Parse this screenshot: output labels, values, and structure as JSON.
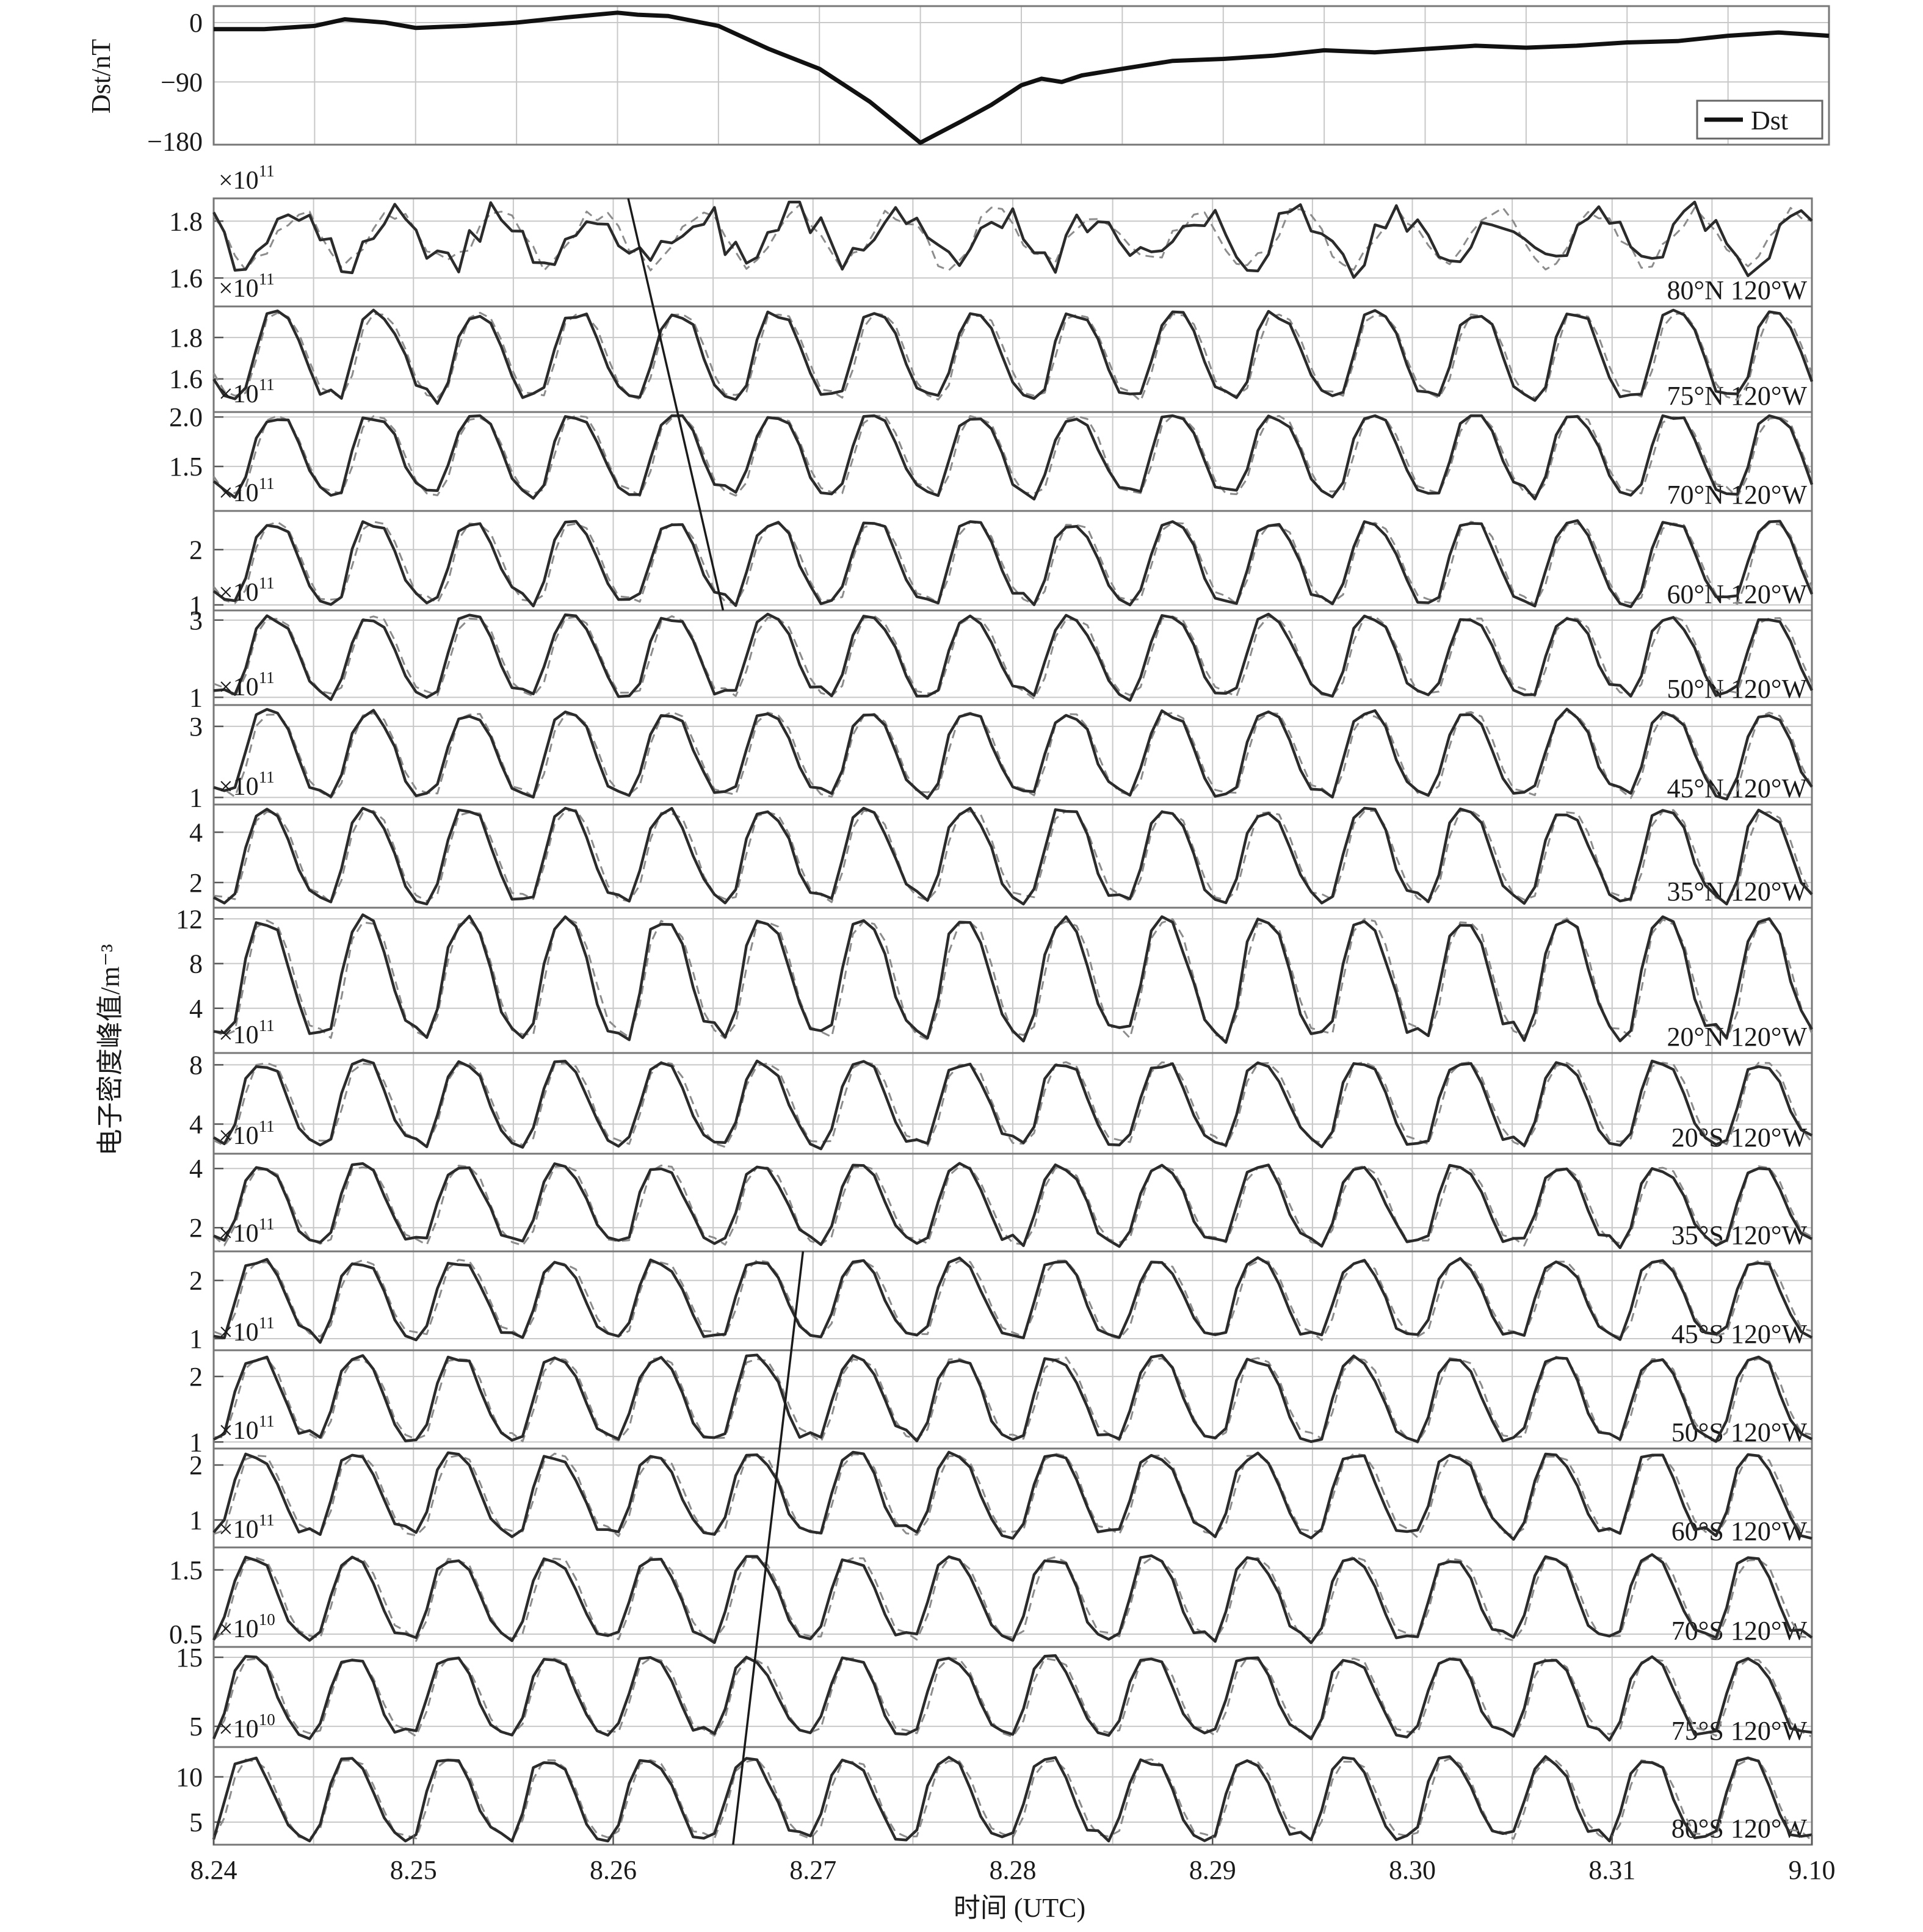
{
  "chart_data": {
    "type": "line",
    "xlabel": "时间 (UTC)",
    "ylabel": "电子密度峰值/m⁻³",
    "x_ticks": [
      "8.24",
      "8.25",
      "8.26",
      "8.27",
      "8.28",
      "8.29",
      "8.30",
      "8.31",
      "9.10"
    ],
    "x_range_days": [
      0,
      16
    ],
    "dst_panel": {
      "ylabel": "Dst/nT",
      "yticks": [
        "0",
        "−90",
        "−180"
      ],
      "ylim": [
        -185,
        25
      ],
      "legend": "Dst",
      "series": {
        "name": "Dst",
        "x": [
          0,
          0.5,
          1,
          1.3,
          1.7,
          2,
          2.5,
          3,
          3.5,
          4,
          4.2,
          4.5,
          5,
          5.5,
          6,
          6.5,
          7,
          7.4,
          7.7,
          8,
          8.2,
          8.4,
          8.6,
          8.8,
          9,
          9.5,
          10,
          10.5,
          11,
          11.5,
          12,
          12.5,
          13,
          13.5,
          14,
          14.5,
          15,
          15.5,
          16
        ],
        "values": [
          -10,
          -10,
          -5,
          5,
          0,
          -8,
          -5,
          0,
          8,
          15,
          12,
          10,
          -5,
          -40,
          -70,
          -120,
          -182,
          -150,
          -125,
          -95,
          -85,
          -90,
          -80,
          -75,
          -70,
          -58,
          -55,
          -50,
          -42,
          -45,
          -40,
          -35,
          -38,
          -35,
          -30,
          -28,
          -20,
          -15,
          -20
        ]
      }
    },
    "panels": [
      {
        "label": "80°N 120°W",
        "exponent": "11",
        "yticks": [
          "1.8",
          "1.6"
        ],
        "ylim": [
          1.5,
          1.88
        ],
        "min": 1.6,
        "max": 1.86,
        "shape": "storm-polar"
      },
      {
        "label": "75°N 120°W",
        "exponent": "11",
        "yticks": [
          "1.8",
          "1.6"
        ],
        "ylim": [
          1.44,
          1.95
        ],
        "min": 1.5,
        "max": 1.92,
        "shape": "daily"
      },
      {
        "label": "70°N 120°W",
        "exponent": "11",
        "yticks": [
          "2.0",
          "1.5"
        ],
        "ylim": [
          1.05,
          2.05
        ],
        "min": 1.2,
        "max": 2.02,
        "shape": "daily"
      },
      {
        "label": "60°N 120°W",
        "exponent": "11",
        "yticks": [
          "2",
          "1"
        ],
        "ylim": [
          0.9,
          2.7
        ],
        "min": 1.0,
        "max": 2.5,
        "shape": "daily"
      },
      {
        "label": "50°N 120°W",
        "exponent": "11",
        "yticks": [
          "3",
          "1"
        ],
        "ylim": [
          0.8,
          3.25
        ],
        "min": 1.0,
        "max": 3.1,
        "shape": "daily"
      },
      {
        "label": "45°N 120°W",
        "exponent": "11",
        "yticks": [
          "3",
          "1"
        ],
        "ylim": [
          0.8,
          3.6
        ],
        "min": 1.0,
        "max": 3.4,
        "shape": "daily"
      },
      {
        "label": "35°N 120°W",
        "exponent": "11",
        "yticks": [
          "4",
          "2"
        ],
        "ylim": [
          1.0,
          5.1
        ],
        "min": 1.2,
        "max": 4.9,
        "shape": "daily"
      },
      {
        "label": "20°N 120°W",
        "exponent": "",
        "yticks": [
          "12",
          "8",
          "4"
        ],
        "ylim": [
          0,
          13
        ],
        "min": 1.2,
        "max": 12,
        "shape": "daily"
      },
      {
        "label": "20°S 120°W",
        "exponent": "11",
        "yticks": [
          "8",
          "4"
        ],
        "ylim": [
          2.0,
          8.8
        ],
        "min": 2.5,
        "max": 8.2,
        "shape": "daily"
      },
      {
        "label": "35°S 120°W",
        "exponent": "11",
        "yticks": [
          "4",
          "2"
        ],
        "ylim": [
          1.2,
          4.5
        ],
        "min": 1.4,
        "max": 4.1,
        "shape": "daily"
      },
      {
        "label": "45°S 120°W",
        "exponent": "11",
        "yticks": [
          "2",
          "1"
        ],
        "ylim": [
          0.8,
          2.5
        ],
        "min": 1.0,
        "max": 2.35,
        "shape": "daily"
      },
      {
        "label": "50°S 120°W",
        "exponent": "11",
        "yticks": [
          "2",
          "1"
        ],
        "ylim": [
          0.9,
          2.4
        ],
        "min": 1.0,
        "max": 2.3,
        "shape": "daily"
      },
      {
        "label": "60°S 120°W",
        "exponent": "11",
        "yticks": [
          "2",
          "1"
        ],
        "ylim": [
          0.5,
          2.3
        ],
        "min": 0.7,
        "max": 2.2,
        "shape": "daily"
      },
      {
        "label": "70°S 120°W",
        "exponent": "11",
        "yticks": [
          "1.5",
          "0.5"
        ],
        "ylim": [
          0.3,
          1.85
        ],
        "min": 0.4,
        "max": 1.7,
        "shape": "daily"
      },
      {
        "label": "75°S 120°W",
        "exponent": "10",
        "yticks": [
          "15",
          "5"
        ],
        "ylim": [
          2.0,
          16.5
        ],
        "min": 3.5,
        "max": 15,
        "shape": "daily"
      },
      {
        "label": "80°S 120°W",
        "exponent": "10",
        "yticks": [
          "10",
          "5"
        ],
        "ylim": [
          2.5,
          13.3
        ],
        "min": 3.0,
        "max": 12,
        "shape": "daily"
      }
    ],
    "series_styles": {
      "observed": "solid dark",
      "modeled": "dashed gray"
    },
    "annotation_lines": [
      {
        "from": {
          "panel": 1,
          "day": 4.15,
          "frac": 0.0
        },
        "to": {
          "panel": 4,
          "day": 5.1,
          "frac": 1.0
        }
      },
      {
        "from": {
          "panel": 11,
          "day": 5.9,
          "frac": 0.0
        },
        "to": {
          "panel": 16,
          "day": 5.2,
          "frac": 1.0
        }
      }
    ]
  }
}
